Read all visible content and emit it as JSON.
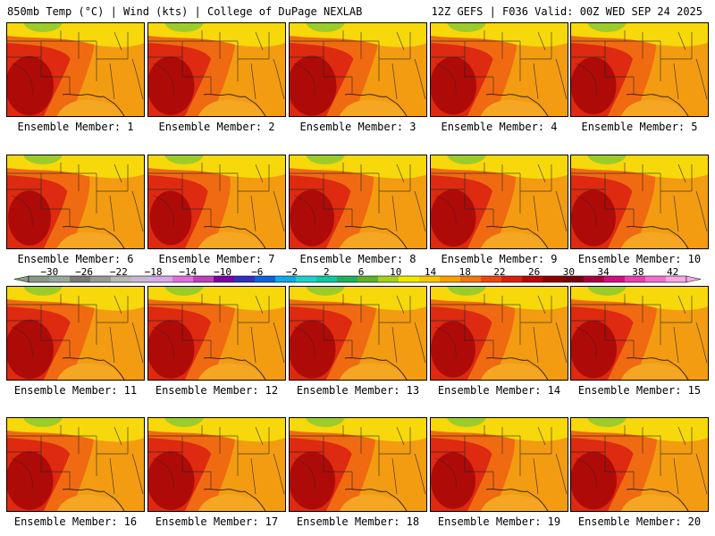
{
  "header": {
    "left_title": "850mb Temp (°C) | Wind (kts) | College of DuPage NEXLAB",
    "right_title": "12Z GEFS | F036 Valid: 00Z WED SEP 24 2025"
  },
  "panels": [
    {
      "label": "Ensemble Member: 1",
      "hot": 0.9
    },
    {
      "label": "Ensemble Member: 2",
      "hot": 0.85
    },
    {
      "label": "Ensemble Member: 3",
      "hot": 0.95
    },
    {
      "label": "Ensemble Member: 4",
      "hot": 0.8
    },
    {
      "label": "Ensemble Member: 5",
      "hot": 0.75
    },
    {
      "label": "Ensemble Member: 6",
      "hot": 0.6
    },
    {
      "label": "Ensemble Member: 7",
      "hot": 0.55
    },
    {
      "label": "Ensemble Member: 8",
      "hot": 0.7
    },
    {
      "label": "Ensemble Member: 9",
      "hot": 0.75
    },
    {
      "label": "Ensemble Member: 10",
      "hot": 0.7
    },
    {
      "label": "Ensemble Member: 11",
      "hot": 0.9
    },
    {
      "label": "Ensemble Member: 12",
      "hot": 0.85
    },
    {
      "label": "Ensemble Member: 13",
      "hot": 0.85
    },
    {
      "label": "Ensemble Member: 14",
      "hot": 0.7
    },
    {
      "label": "Ensemble Member: 15",
      "hot": 0.8
    },
    {
      "label": "Ensemble Member: 16",
      "hot": 0.85
    },
    {
      "label": "Ensemble Member: 17",
      "hot": 0.85
    },
    {
      "label": "Ensemble Member: 18",
      "hot": 0.8
    },
    {
      "label": "Ensemble Member: 19",
      "hot": 0.7
    },
    {
      "label": "Ensemble Member: 20",
      "hot": 0.8
    }
  ],
  "colorbar": {
    "tick_labels": [
      "−30",
      "−26",
      "−22",
      "−18",
      "−14",
      "−10",
      "−6",
      "−2",
      "2",
      "6",
      "10",
      "14",
      "18",
      "22",
      "26",
      "30",
      "34",
      "38",
      "42"
    ],
    "colors": [
      "#8a9a8a",
      "#9aaa9a",
      "#7a7a7a",
      "#999999",
      "#b8b8b8",
      "#c8b8d8",
      "#d8a8e8",
      "#e070e0",
      "#c040c0",
      "#7a00a8",
      "#3030c0",
      "#1060e0",
      "#10a8e8",
      "#20d0d0",
      "#10c8a0",
      "#20b060",
      "#60b030",
      "#a8d020",
      "#f0e800",
      "#f8c800",
      "#f8a000",
      "#f07810",
      "#e84810",
      "#d82010",
      "#b80808",
      "#900000",
      "#780010",
      "#a80040",
      "#d01080",
      "#e840b0",
      "#f070d0",
      "#f8a8e8"
    ]
  }
}
